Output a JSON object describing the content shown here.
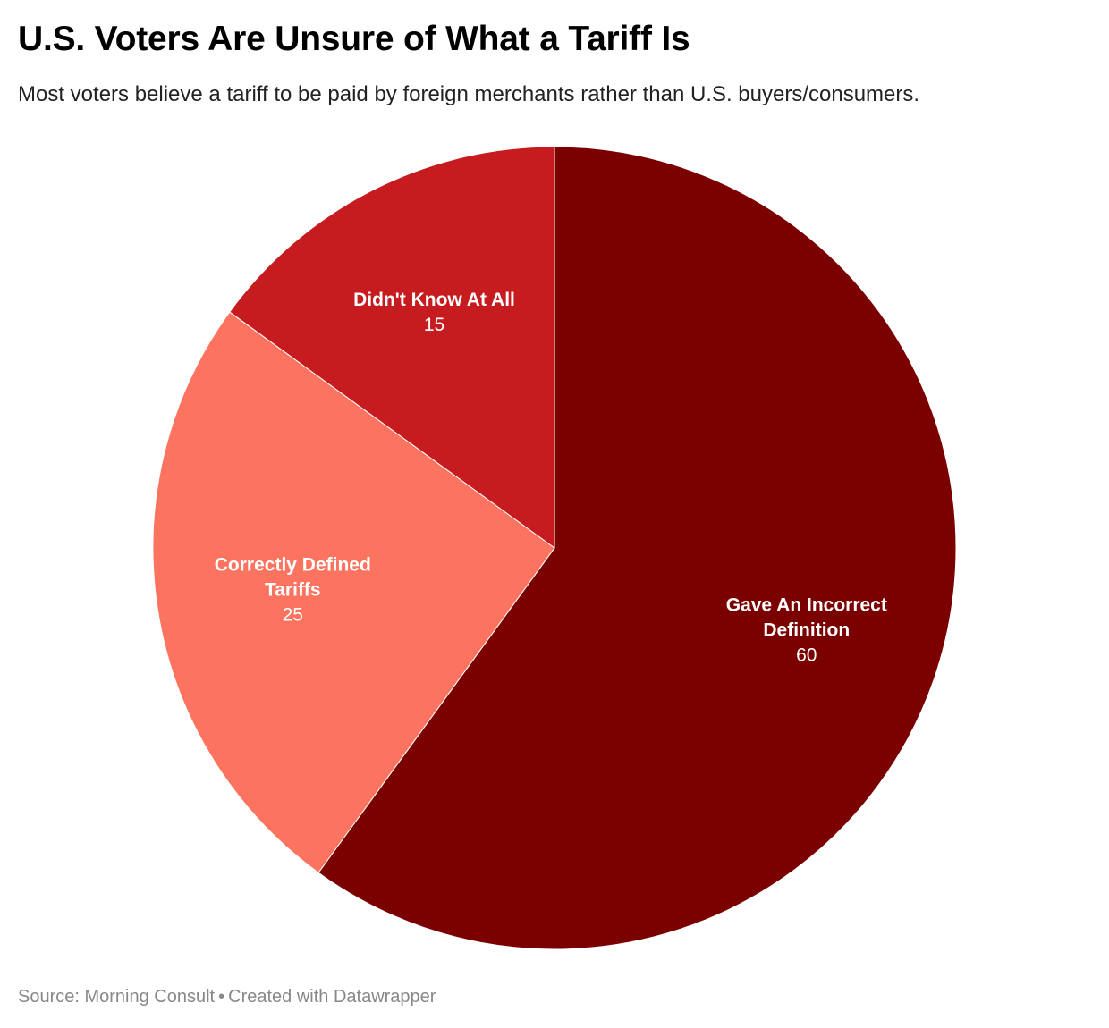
{
  "header": {
    "title": "U.S. Voters Are Unsure of What a Tariff Is",
    "subtitle": "Most voters believe a tariff to be paid by foreign merchants rather than U.S. buyers/consumers."
  },
  "footer": {
    "source": "Source: Morning Consult",
    "separator": "•",
    "credit": "Created with Datawrapper"
  },
  "chart_data": {
    "type": "pie",
    "title": "U.S. Voters Are Unsure of What a Tariff Is",
    "subtitle": "Most voters believe a tariff to be paid by foreign merchants rather than U.S. buyers/consumers.",
    "start": "12 o'clock",
    "direction": "clockwise",
    "slices": [
      {
        "label": "Gave An Incorrect Definition",
        "label_lines": [
          "Gave An Incorrect",
          "Definition"
        ],
        "value": 60,
        "color": "#7b0000"
      },
      {
        "label": "Correctly Defined Tariffs",
        "label_lines": [
          "Correctly Defined",
          "Tariffs"
        ],
        "value": 25,
        "color": "#fc7460"
      },
      {
        "label": "Didn't Know At All",
        "label_lines": [
          "Didn't Know At All"
        ],
        "value": 15,
        "color": "#c71c1f"
      }
    ],
    "legend": "none",
    "data_labels": "inside slices"
  }
}
